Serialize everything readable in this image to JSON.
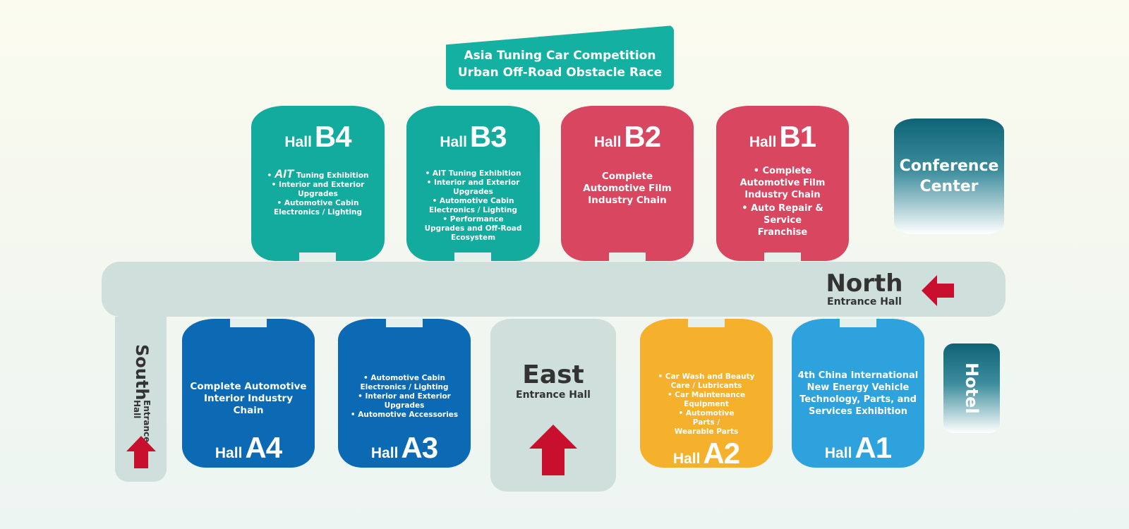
{
  "banner": {
    "line1": "Asia Tuning Car Competition",
    "line2": "Urban Off-Road Obstacle Race"
  },
  "colors": {
    "teal": "#12ab9d",
    "red": "#d9465f",
    "blue": "#0c69b4",
    "orange": "#f5b02c",
    "sky": "#2ea2dd",
    "corridor": "#cfdfdb",
    "arrow": "#c8102e"
  },
  "hall_word": "Hall",
  "halls": {
    "B4": {
      "code": "B4",
      "ait": "AIT",
      "items": [
        "Tuning Exhibition",
        "• Interior and Exterior Upgrades",
        "• Automotive Cabin Electronics / Lighting"
      ]
    },
    "B3": {
      "code": "B3",
      "items": [
        "• AIT Tuning Exhibition",
        "• Interior and Exterior Upgrades",
        "• Automotive Cabin Electronics / Lighting",
        "• Performance Upgrades and Off-Road Ecosystem"
      ]
    },
    "B2": {
      "code": "B2",
      "desc": "Complete Automotive Film Industry Chain"
    },
    "B1": {
      "code": "B1",
      "items": [
        "• Complete Automotive Film Industry Chain",
        "• Auto Repair & Service Franchise"
      ]
    },
    "A4": {
      "code": "A4",
      "desc": "Complete Automotive Interior Industry Chain"
    },
    "A3": {
      "code": "A3",
      "items": [
        "• Automotive Cabin Electronics / Lighting",
        "• Interior and Exterior Upgrades",
        "• Automotive Accessories"
      ]
    },
    "A2": {
      "code": "A2",
      "items": [
        "• Car Wash and Beauty Care / Lubricants",
        "• Car Maintenance Equipment",
        "• Automotive Parts / Wearable Parts"
      ]
    },
    "A1": {
      "code": "A1",
      "desc": "4th China International New Energy Vehicle Technology, Parts, and Services Exhibition"
    }
  },
  "conference": "Conference Center",
  "hotel": "Hotel",
  "north": {
    "name": "North",
    "sub": "Entrance Hall"
  },
  "south": {
    "name": "South",
    "sub": "Entrance Hall"
  },
  "east": {
    "name": "East",
    "sub": "Entrance Hall"
  }
}
